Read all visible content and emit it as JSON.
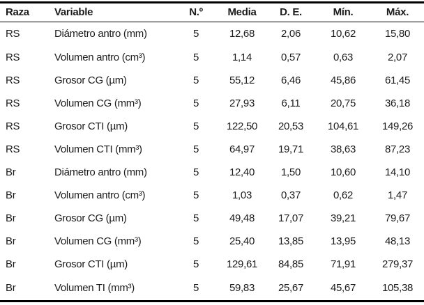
{
  "table": {
    "columns": [
      "Raza",
      "Variable",
      "N.º",
      "Media",
      "D. E.",
      "Mín.",
      "Máx."
    ],
    "rows": [
      [
        "RS",
        "Diámetro antro (mm)",
        "5",
        "12,68",
        "2,06",
        "10,62",
        "15,80"
      ],
      [
        "RS",
        "Volumen antro (cm³)",
        "5",
        "1,14",
        "0,57",
        "0,63",
        "2,07"
      ],
      [
        "RS",
        "Grosor CG (µm)",
        "5",
        "55,12",
        "6,46",
        "45,86",
        "61,45"
      ],
      [
        "RS",
        "Volumen CG (mm³)",
        "5",
        "27,93",
        "6,11",
        "20,75",
        "36,18"
      ],
      [
        "RS",
        "Grosor CTI (µm)",
        "5",
        "122,50",
        "20,53",
        "104,61",
        "149,26"
      ],
      [
        "RS",
        "Volumen CTI (mm³)",
        "5",
        "64,97",
        "19,71",
        "38,63",
        "87,23"
      ],
      [
        "Br",
        "Diámetro antro (mm)",
        "5",
        "12,40",
        "1,50",
        "10,60",
        "14,10"
      ],
      [
        "Br",
        "Volumen antro (cm³)",
        "5",
        "1,03",
        "0,37",
        "0,62",
        "1,47"
      ],
      [
        "Br",
        "Grosor CG (µm)",
        "5",
        "49,48",
        "17,07",
        "39,21",
        "79,67"
      ],
      [
        "Br",
        "Volumen CG (mm³)",
        "5",
        "25,40",
        "13,85",
        "13,95",
        "48,13"
      ],
      [
        "Br",
        "Grosor CTI (µm)",
        "5",
        "129,61",
        "84,85",
        "71,91",
        "279,37"
      ],
      [
        "Br",
        "Volumen TI (mm³)",
        "5",
        "59,83",
        "25,67",
        "45,67",
        "105,38"
      ]
    ],
    "text_color": "#1c1c1c",
    "rule_color": "#000000"
  }
}
